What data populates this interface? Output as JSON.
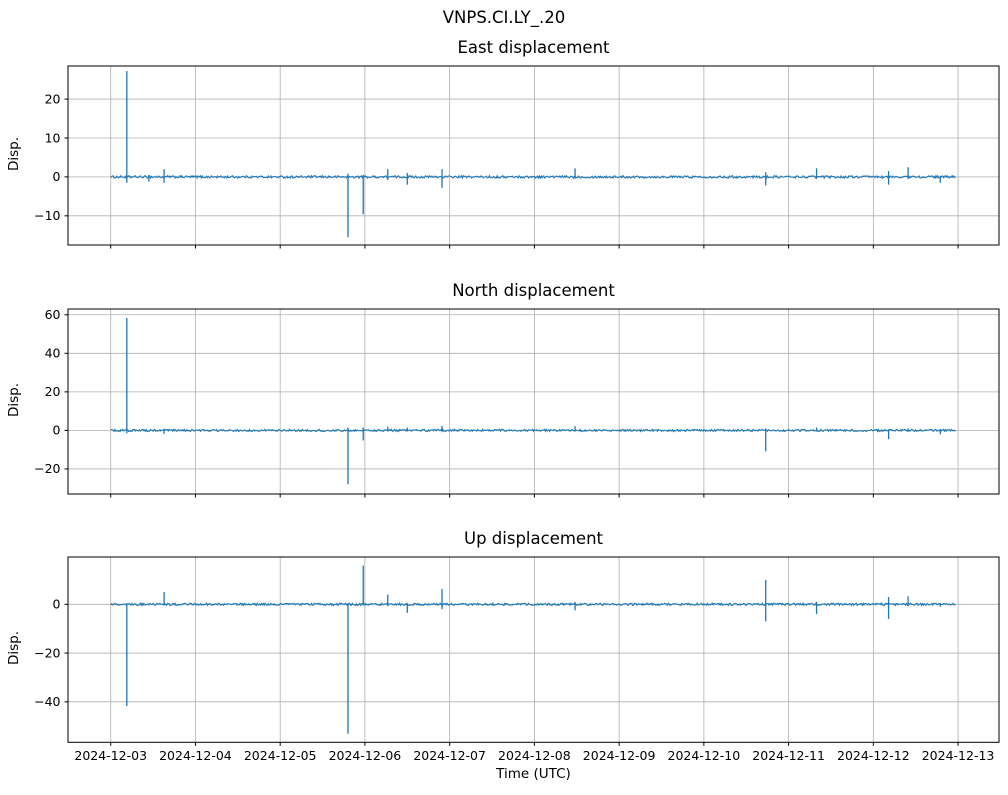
{
  "colors": {
    "line": "#1f77b4",
    "grid": "#b0b0b0",
    "frame": "#000000",
    "text": "#000000",
    "background": "#ffffff"
  },
  "chart_data": {
    "type": "line",
    "suptitle": "VNPS.CI.LY_.20",
    "xlabel": "Time (UTC)",
    "legend": "none",
    "grid": "on",
    "x": {
      "tick_labels": [
        "2024-12-03",
        "2024-12-04",
        "2024-12-05",
        "2024-12-06",
        "2024-12-07",
        "2024-12-08",
        "2024-12-09",
        "2024-12-10",
        "2024-12-11",
        "2024-12-12",
        "2024-12-13"
      ],
      "tick_positions_days": [
        0,
        1,
        2,
        3,
        4,
        5,
        6,
        7,
        8,
        9,
        10
      ],
      "xlim_days": [
        -0.504,
        10.483
      ],
      "data_range_days": [
        0,
        9.97
      ]
    },
    "subplots": [
      {
        "title": "East displacement",
        "ylabel": "Disp.",
        "yticks": [
          -10,
          0,
          10,
          20
        ],
        "ylim": [
          -17.5,
          28.5
        ],
        "baseline_value": 0,
        "noise_amplitude": 0.3,
        "spikes": [
          {
            "t": 0.19,
            "peak": 27.2,
            "trough": -1.5
          },
          {
            "t": 0.45,
            "peak": 0.5,
            "trough": -1.2
          },
          {
            "t": 0.63,
            "peak": 2.0,
            "trough": -1.5
          },
          {
            "t": 2.8,
            "peak": 0.8,
            "trough": -15.5
          },
          {
            "t": 2.98,
            "peak": 0.5,
            "trough": -9.6
          },
          {
            "t": 3.27,
            "peak": 2.0,
            "trough": -0.8
          },
          {
            "t": 3.5,
            "peak": 1.0,
            "trough": -2.0
          },
          {
            "t": 3.91,
            "peak": 2.0,
            "trough": -2.8
          },
          {
            "t": 5.48,
            "peak": 2.2,
            "trough": -0.5
          },
          {
            "t": 7.73,
            "peak": 1.2,
            "trough": -2.2
          },
          {
            "t": 8.33,
            "peak": 2.2,
            "trough": -0.5
          },
          {
            "t": 9.18,
            "peak": 1.5,
            "trough": -2.0
          },
          {
            "t": 9.41,
            "peak": 2.5,
            "trough": -0.5
          },
          {
            "t": 9.79,
            "peak": 0.3,
            "trough": -1.5
          }
        ]
      },
      {
        "title": "North displacement",
        "ylabel": "Disp.",
        "yticks": [
          -20,
          0,
          20,
          40,
          60
        ],
        "ylim": [
          -33,
          63
        ],
        "baseline_value": 0,
        "noise_amplitude": 0.55,
        "spikes": [
          {
            "t": 0.19,
            "peak": 58.3,
            "trough": -1.5
          },
          {
            "t": 0.63,
            "peak": 0.8,
            "trough": -1.8
          },
          {
            "t": 2.8,
            "peak": 1.5,
            "trough": -28.0
          },
          {
            "t": 2.98,
            "peak": 1.5,
            "trough": -5.2
          },
          {
            "t": 3.27,
            "peak": 2.0,
            "trough": -0.6
          },
          {
            "t": 3.5,
            "peak": 1.5,
            "trough": -0.6
          },
          {
            "t": 3.91,
            "peak": 2.3,
            "trough": -0.6
          },
          {
            "t": 5.48,
            "peak": 2.2,
            "trough": -0.6
          },
          {
            "t": 7.73,
            "peak": 1.0,
            "trough": -10.8
          },
          {
            "t": 8.33,
            "peak": 1.5,
            "trough": -0.6
          },
          {
            "t": 9.18,
            "peak": 0.6,
            "trough": -4.5
          },
          {
            "t": 9.41,
            "peak": 1.0,
            "trough": -0.6
          },
          {
            "t": 9.79,
            "peak": 0.3,
            "trough": -2.0
          }
        ]
      },
      {
        "title": "Up displacement",
        "ylabel": "Disp.",
        "yticks": [
          -40,
          -20,
          0
        ],
        "ylim": [
          -56.6,
          19.4
        ],
        "baseline_value": 0,
        "noise_amplitude": 0.45,
        "spikes": [
          {
            "t": 0.19,
            "peak": 0.5,
            "trough": -41.7
          },
          {
            "t": 0.63,
            "peak": 5.0,
            "trough": -0.5
          },
          {
            "t": 2.8,
            "peak": 0.5,
            "trough": -53.1
          },
          {
            "t": 2.98,
            "peak": 15.9,
            "trough": -0.5
          },
          {
            "t": 3.27,
            "peak": 4.0,
            "trough": -0.8
          },
          {
            "t": 3.5,
            "peak": 0.5,
            "trough": -3.5
          },
          {
            "t": 3.91,
            "peak": 6.3,
            "trough": -2.0
          },
          {
            "t": 5.48,
            "peak": 1.0,
            "trough": -2.5
          },
          {
            "t": 7.73,
            "peak": 10.0,
            "trough": -7.0
          },
          {
            "t": 8.33,
            "peak": 1.0,
            "trough": -4.0
          },
          {
            "t": 9.18,
            "peak": 3.0,
            "trough": -6.0
          },
          {
            "t": 9.41,
            "peak": 3.3,
            "trough": -0.8
          },
          {
            "t": 9.79,
            "peak": 0.5,
            "trough": -1.0
          }
        ]
      }
    ]
  }
}
